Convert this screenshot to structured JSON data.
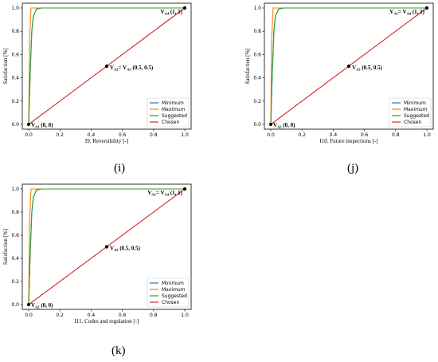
{
  "colors": {
    "minimum": "#1f77b4",
    "maximum": "#ff7f0e",
    "suggested": "#2ca02c",
    "chosen": "#d62728"
  },
  "chart_data": [
    {
      "type": "line",
      "panel_label": "(i)",
      "xlabel": "I9. Reversibility [-]",
      "ylabel": "Satisfaction [%]",
      "xlim": [
        0,
        1
      ],
      "ylim": [
        0,
        1
      ],
      "xticks": [
        "0.0",
        "0.2",
        "0.4",
        "0.6",
        "0.8",
        "1.0"
      ],
      "yticks": [
        "0.0",
        "0.2",
        "0.4",
        "0.6",
        "0.8",
        "1.0"
      ],
      "legend": "bottom-right",
      "series": [
        {
          "name": "Minimum",
          "color": "#1f77b4",
          "x": [
            0,
            0.01,
            0.02,
            0.03,
            0.05,
            0.08,
            1
          ],
          "y": [
            0,
            0.45,
            0.8,
            0.93,
            0.99,
            1,
            1
          ]
        },
        {
          "name": "Maximum",
          "color": "#ff7f0e",
          "x": [
            0,
            0.005,
            0.015,
            1
          ],
          "y": [
            0,
            0.7,
            1,
            1
          ]
        },
        {
          "name": "Suggested",
          "color": "#2ca02c",
          "x": [
            0,
            0.01,
            0.02,
            0.03,
            0.05,
            0.08,
            1
          ],
          "y": [
            0,
            0.45,
            0.8,
            0.93,
            0.99,
            1,
            1
          ]
        },
        {
          "name": "Chosen",
          "color": "#d62728",
          "x": [
            0,
            1
          ],
          "y": [
            0,
            1
          ]
        }
      ],
      "points": [
        {
          "x": 0,
          "y": 0,
          "label": "V",
          "sub": "A1",
          "rest": " (0, 0)",
          "anchor": "right-below"
        },
        {
          "x": 0.5,
          "y": 0.5,
          "label": "V",
          "sub": "A2",
          "rest": "= V",
          "sub2": "A3",
          "rest2": " (0.5, 0.5)",
          "anchor": "right"
        },
        {
          "x": 1,
          "y": 1,
          "label": "V",
          "sub": "A4",
          "rest": " (1, 1)",
          "anchor": "left"
        }
      ]
    },
    {
      "type": "line",
      "panel_label": "(j)",
      "xlabel": "I10. Future inspections [-]",
      "ylabel": "Satisfaction [%]",
      "xlim": [
        0,
        1
      ],
      "ylim": [
        0,
        1
      ],
      "xticks": [
        "0.0",
        "0.2",
        "0.4",
        "0.6",
        "0.8",
        "1.0"
      ],
      "yticks": [
        "0.0",
        "0.2",
        "0.4",
        "0.6",
        "0.8",
        "1.0"
      ],
      "legend": "bottom-right",
      "series": [
        {
          "name": "Minimum",
          "color": "#1f77b4",
          "x": [
            0,
            0.01,
            0.02,
            0.03,
            0.05,
            0.08,
            1
          ],
          "y": [
            0,
            0.45,
            0.8,
            0.93,
            0.99,
            1,
            1
          ]
        },
        {
          "name": "Maximum",
          "color": "#ff7f0e",
          "x": [
            0,
            0.005,
            0.015,
            1
          ],
          "y": [
            0,
            0.7,
            1,
            1
          ]
        },
        {
          "name": "Suggested",
          "color": "#2ca02c",
          "x": [
            0,
            0.01,
            0.02,
            0.03,
            0.05,
            0.08,
            1
          ],
          "y": [
            0,
            0.45,
            0.8,
            0.93,
            0.99,
            1,
            1
          ]
        },
        {
          "name": "Chosen",
          "color": "#d62728",
          "x": [
            0,
            1
          ],
          "y": [
            0,
            1
          ]
        }
      ],
      "points": [
        {
          "x": 0,
          "y": 0,
          "label": "V",
          "sub": "A2",
          "rest": " (0, 0)",
          "anchor": "right-below"
        },
        {
          "x": 0.5,
          "y": 0.5,
          "label": "V",
          "sub": "A3",
          "rest": " (0.5, 0.5)",
          "anchor": "right"
        },
        {
          "x": 1,
          "y": 1,
          "label": "V",
          "sub": "A1",
          "rest": "= V",
          "sub2": "A4",
          "rest2": " (1, 1)",
          "anchor": "left"
        }
      ]
    },
    {
      "type": "line",
      "panel_label": "(k)",
      "xlabel": "I11. Codes and regulation [-]",
      "ylabel": "Satisfaction [%]",
      "xlim": [
        0,
        1
      ],
      "ylim": [
        0,
        1
      ],
      "xticks": [
        "0.0",
        "0.2",
        "0.4",
        "0.6",
        "0.8",
        "1.0"
      ],
      "yticks": [
        "0.0",
        "0.2",
        "0.4",
        "0.6",
        "0.8",
        "1.0"
      ],
      "legend": "bottom-right",
      "series": [
        {
          "name": "Minimum",
          "color": "#1f77b4",
          "x": [
            0,
            0.01,
            0.02,
            0.03,
            0.05,
            0.08,
            1
          ],
          "y": [
            0,
            0.45,
            0.8,
            0.93,
            0.99,
            1,
            1
          ]
        },
        {
          "name": "Maximum",
          "color": "#ff7f0e",
          "x": [
            0,
            0.005,
            0.015,
            1
          ],
          "y": [
            0,
            0.7,
            1,
            1
          ]
        },
        {
          "name": "Suggested",
          "color": "#2ca02c",
          "x": [
            0,
            0.01,
            0.02,
            0.03,
            0.05,
            0.08,
            1
          ],
          "y": [
            0,
            0.45,
            0.8,
            0.93,
            0.99,
            1,
            1
          ]
        },
        {
          "name": "Chosen",
          "color": "#d62728",
          "x": [
            0,
            1
          ],
          "y": [
            0,
            1
          ]
        }
      ],
      "points": [
        {
          "x": 0,
          "y": 0,
          "label": "V",
          "sub": "A2",
          "rest": " (0, 0)",
          "anchor": "right-below"
        },
        {
          "x": 0.5,
          "y": 0.5,
          "label": "V",
          "sub": "A3",
          "rest": " (0.5, 0.5)",
          "anchor": "right"
        },
        {
          "x": 1,
          "y": 1,
          "label": "V",
          "sub": "A1",
          "rest": "= V",
          "sub2": "A4",
          "rest2": " (1, 1)",
          "anchor": "left"
        }
      ]
    }
  ]
}
